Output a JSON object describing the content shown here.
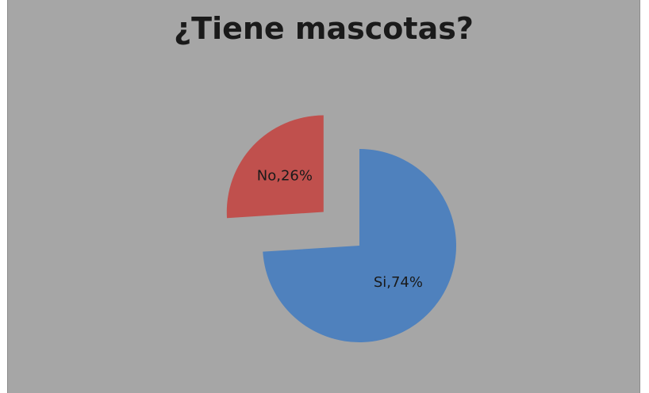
{
  "chart_data": {
    "type": "pie",
    "title": "¿Tiene mascotas?",
    "slices": [
      {
        "label": "Si",
        "value": 74,
        "display": "Si,74%",
        "color": "#4f81bd",
        "exploded": false
      },
      {
        "label": "No",
        "value": 26,
        "display": "No,26%",
        "color": "#c0504d",
        "exploded": true
      }
    ],
    "start_angle_deg": 0,
    "direction": "clockwise",
    "background_color": "#a6a6a6"
  }
}
